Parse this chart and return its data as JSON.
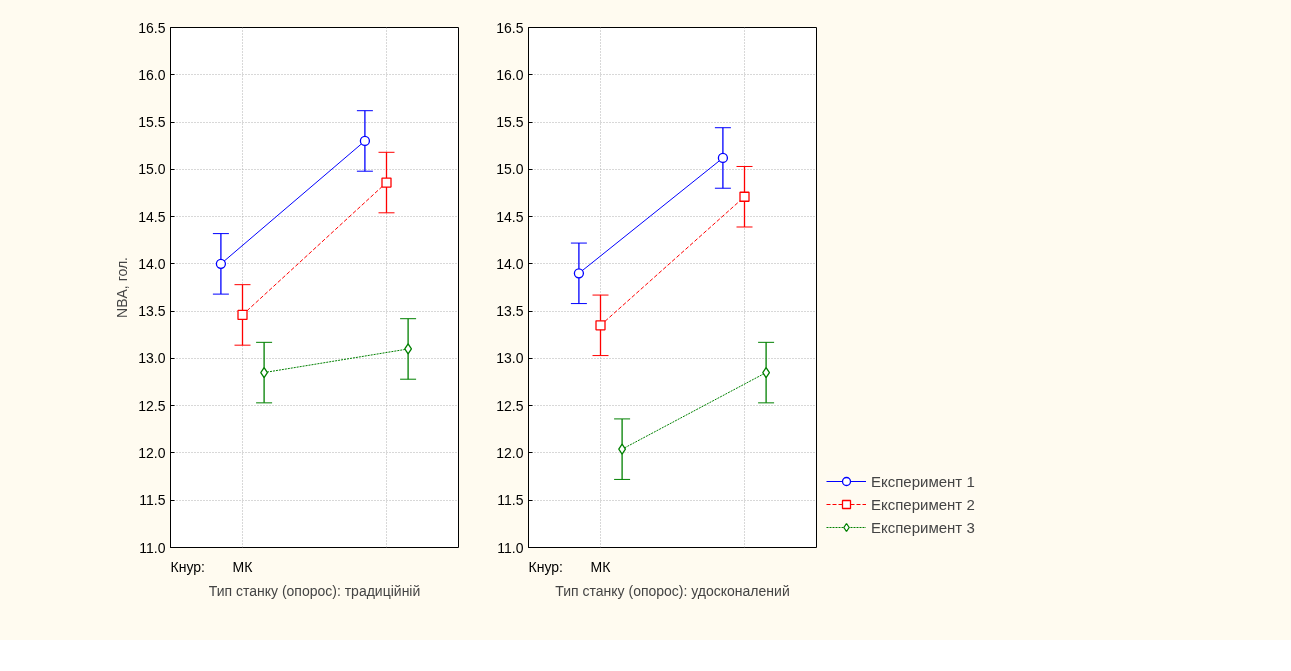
{
  "chart_data": [
    {
      "type": "line",
      "xlabel": "Тип станку (опорос): традиційній",
      "ylabel": "NBA, гол.",
      "categories": [
        "МК",
        null
      ],
      "ylim": [
        11.0,
        16.5
      ],
      "yticks": [
        {
          "value": 11.0,
          "label": "11.0"
        },
        {
          "value": 11.5,
          "label": "11.5"
        },
        {
          "value": 12.0,
          "label": "12.0"
        },
        {
          "value": 12.5,
          "label": "12.5"
        },
        {
          "value": 13.0,
          "label": "13.0"
        },
        {
          "value": 13.5,
          "label": "13.5"
        },
        {
          "value": 14.0,
          "label": "14.0"
        },
        {
          "value": 14.5,
          "label": "14.5"
        },
        {
          "value": 15.0,
          "label": "15.0"
        },
        {
          "value": 15.5,
          "label": "15.5"
        },
        {
          "value": 16.0,
          "label": "16.0"
        },
        {
          "value": 16.5,
          "label": "16.5"
        }
      ],
      "grid": true,
      "annotations": [
        "Кнур:"
      ],
      "series": [
        {
          "color": "#0000ff",
          "marker": "circle",
          "line_style": "solid",
          "values": [
            14.0,
            15.3
          ],
          "errors": [
            0.32,
            0.32
          ]
        },
        {
          "color": "#ff0000",
          "marker": "square",
          "line_style": "dashed",
          "values": [
            13.46,
            14.86
          ],
          "errors": [
            0.32,
            0.32
          ]
        },
        {
          "color": "#008000",
          "marker": "diamond",
          "line_style": "dotted",
          "values": [
            12.85,
            13.1
          ],
          "errors": [
            0.32,
            0.32
          ]
        }
      ]
    },
    {
      "type": "line",
      "xlabel": "Тип станку (опорос): удосконалений",
      "categories": [
        "МК",
        null
      ],
      "ylim": [
        11.0,
        16.5
      ],
      "yticks": [
        {
          "value": 11.0,
          "label": "11.0"
        },
        {
          "value": 11.5,
          "label": "11.5"
        },
        {
          "value": 12.0,
          "label": "12.0"
        },
        {
          "value": 12.5,
          "label": "12.5"
        },
        {
          "value": 13.0,
          "label": "13.0"
        },
        {
          "value": 13.5,
          "label": "13.5"
        },
        {
          "value": 14.0,
          "label": "14.0"
        },
        {
          "value": 14.5,
          "label": "14.5"
        },
        {
          "value": 15.0,
          "label": "15.0"
        },
        {
          "value": 15.5,
          "label": "15.5"
        },
        {
          "value": 16.0,
          "label": "16.0"
        },
        {
          "value": 16.5,
          "label": "16.5"
        }
      ],
      "grid": true,
      "legend": "right",
      "annotations": [
        "Кнур:"
      ],
      "series": [
        {
          "name": "Експеримент 1",
          "color": "#0000ff",
          "marker": "circle",
          "line_style": "solid",
          "values": [
            13.9,
            15.12
          ],
          "errors": [
            0.32,
            0.32
          ]
        },
        {
          "name": "Експеримент 2",
          "color": "#ff0000",
          "marker": "square",
          "line_style": "dashed",
          "values": [
            13.35,
            14.71
          ],
          "errors": [
            0.32,
            0.32
          ]
        },
        {
          "name": "Експеримент 3",
          "color": "#008000",
          "marker": "diamond",
          "line_style": "dotted",
          "values": [
            12.04,
            12.85
          ],
          "errors": [
            0.32,
            0.32
          ]
        }
      ]
    }
  ]
}
